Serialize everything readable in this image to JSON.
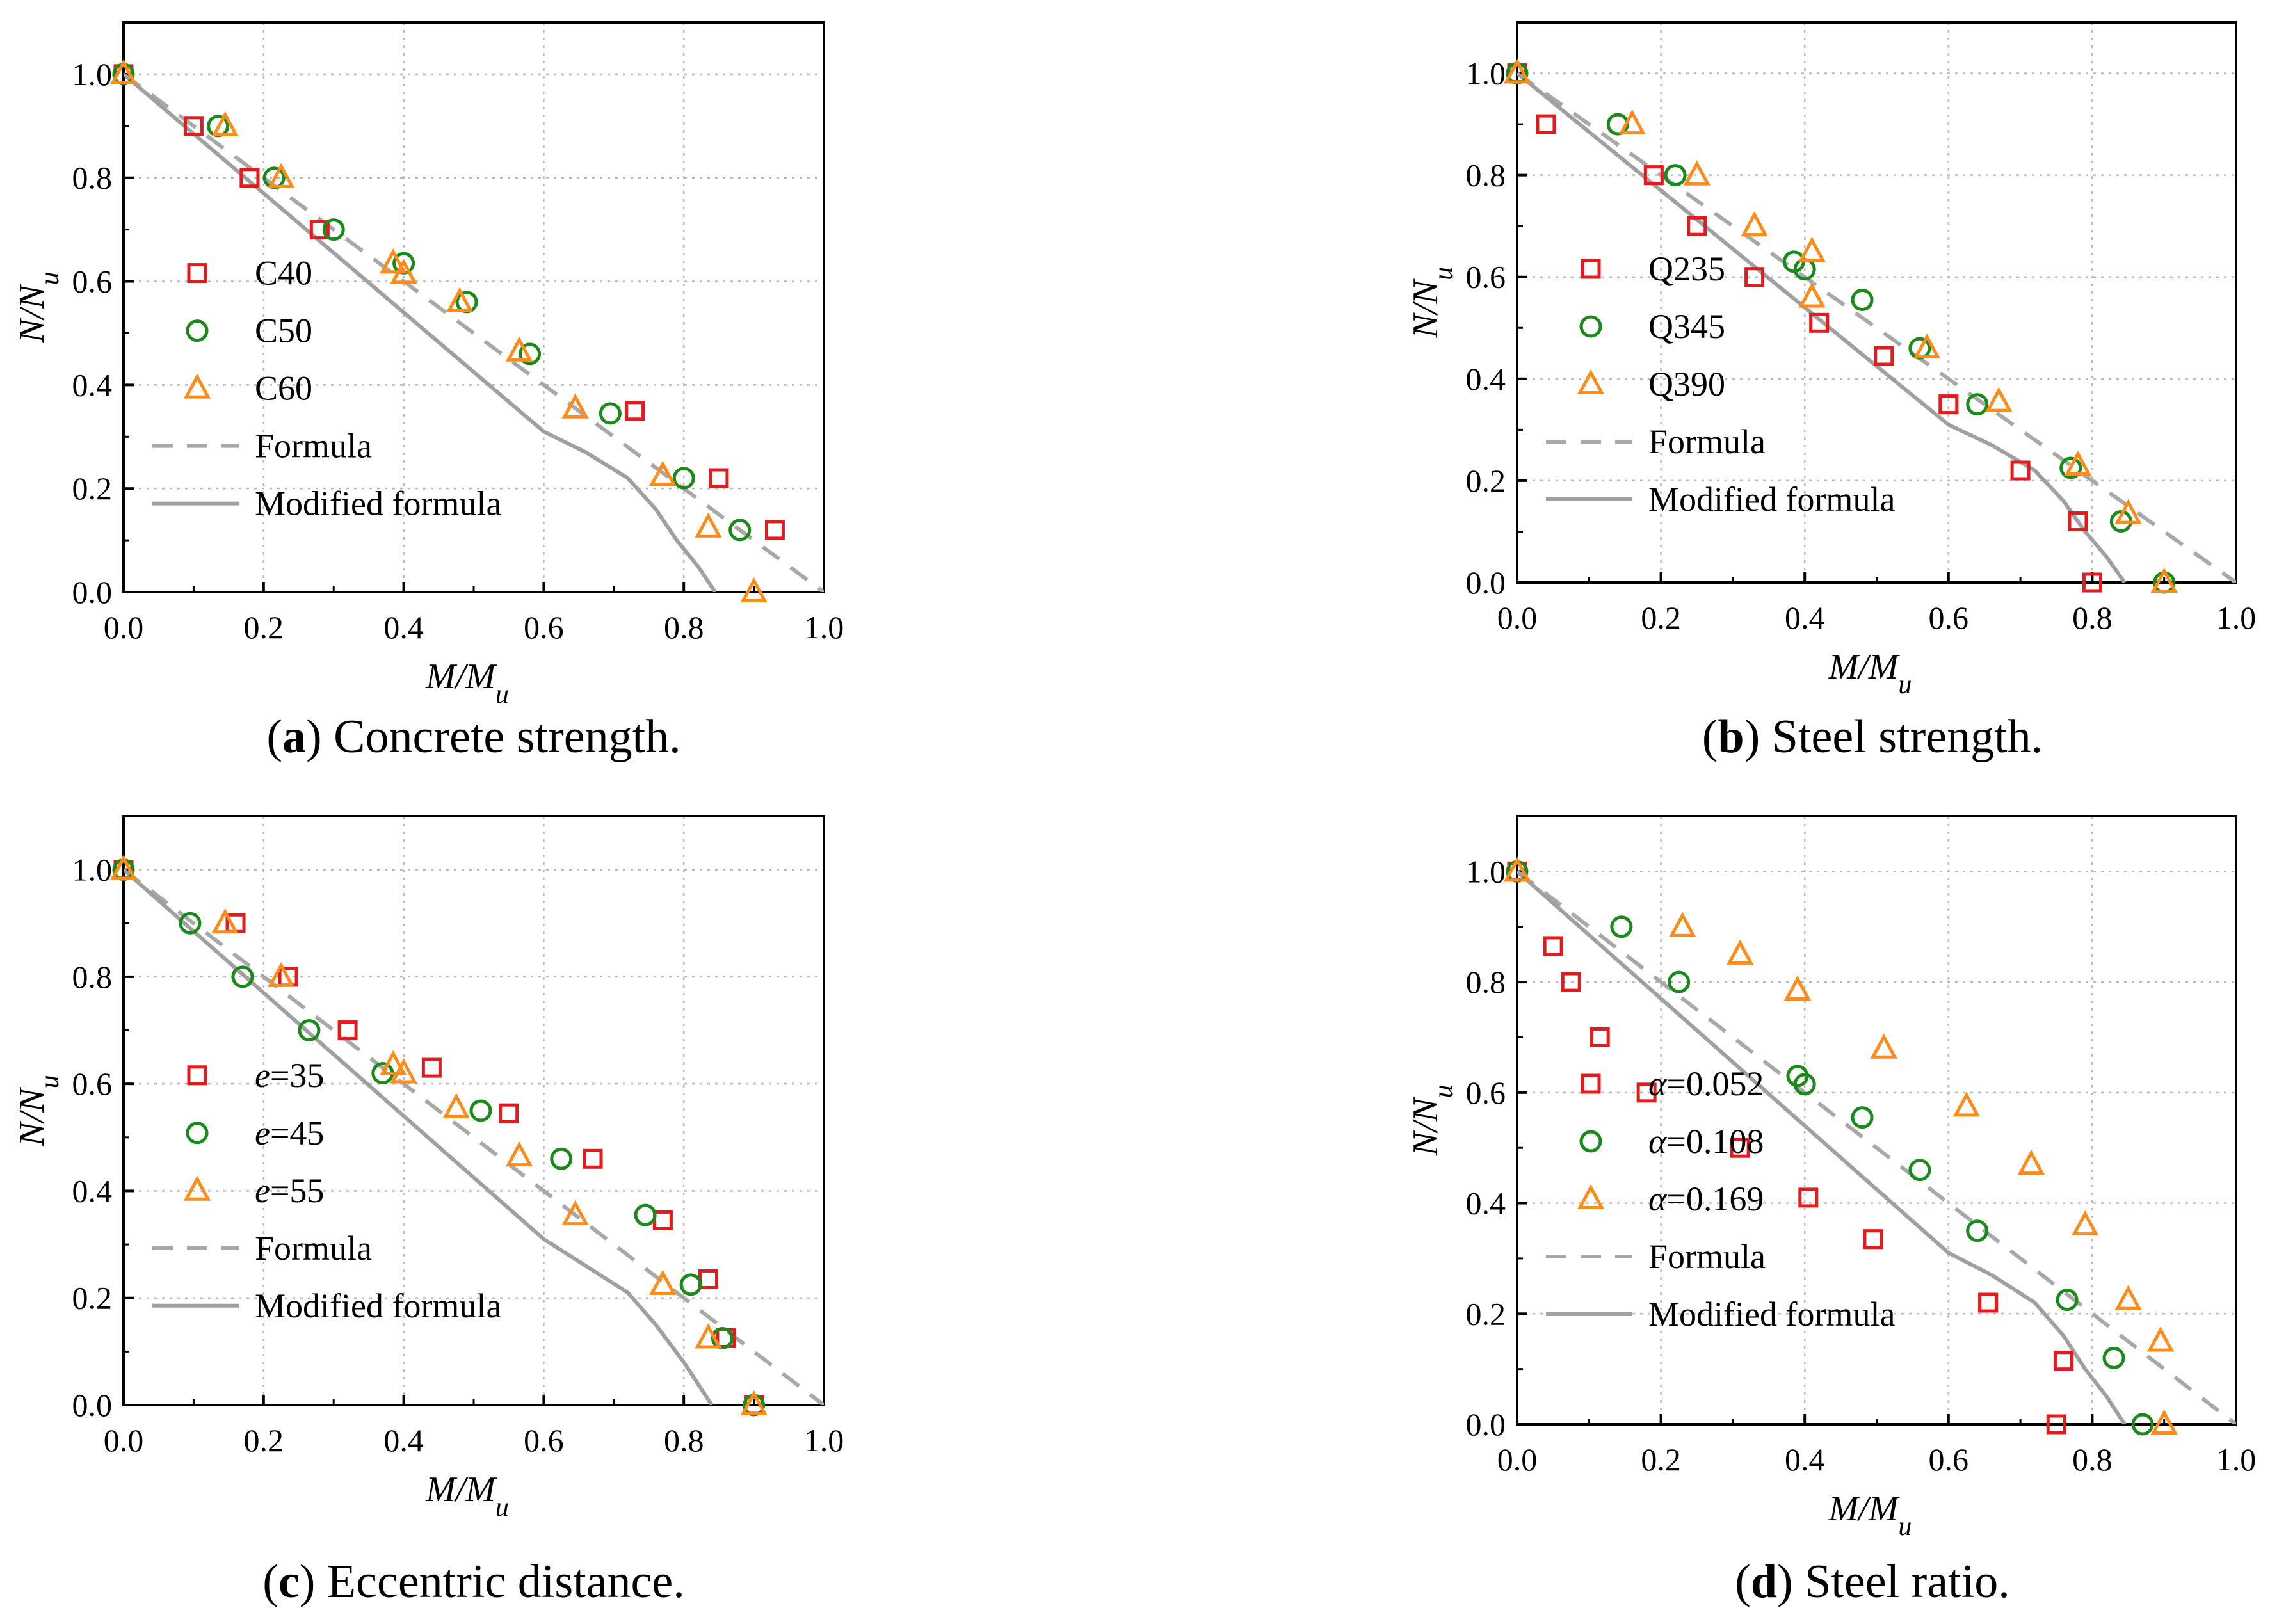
{
  "figure": {
    "panels_order": [
      "a",
      "b",
      "c",
      "d"
    ]
  },
  "axis": {
    "xlabel_main": "M/M",
    "xlabel_sub": "u",
    "ylabel_main": "N/N",
    "ylabel_sub": "u",
    "xticks": [
      "0.0",
      "0.2",
      "0.4",
      "0.6",
      "0.8",
      "1.0"
    ],
    "yticks": [
      "0.0",
      "0.2",
      "0.4",
      "0.6",
      "0.8",
      "1.0"
    ]
  },
  "colors": {
    "series1": "#e41a1c",
    "series2": "#1a8a1a",
    "series3": "#ff8c1a",
    "formula": "#a8a8a8",
    "modified": "#a0a0a0",
    "grid": "#b8b8b8"
  },
  "chart_data": [
    {
      "id": "a",
      "type": "scatter",
      "caption_letter": "a",
      "caption_text": "Concrete strength.",
      "xlim": [
        0,
        1
      ],
      "ylim": [
        0,
        1.1
      ],
      "grid": true,
      "legend_position": "middle-left",
      "series": [
        {
          "name": "C40",
          "marker": "square",
          "points": [
            [
              0,
              1.0
            ],
            [
              0.1,
              0.9
            ],
            [
              0.18,
              0.8
            ],
            [
              0.28,
              0.7
            ],
            [
              0.73,
              0.35
            ],
            [
              0.85,
              0.22
            ],
            [
              0.93,
              0.12
            ]
          ]
        },
        {
          "name": "C50",
          "marker": "circle",
          "points": [
            [
              0,
              1.0
            ],
            [
              0.135,
              0.9
            ],
            [
              0.215,
              0.8
            ],
            [
              0.3,
              0.7
            ],
            [
              0.4,
              0.635
            ],
            [
              0.49,
              0.56
            ],
            [
              0.58,
              0.46
            ],
            [
              0.695,
              0.345
            ],
            [
              0.8,
              0.22
            ],
            [
              0.88,
              0.12
            ]
          ]
        },
        {
          "name": "C60",
          "marker": "triangle",
          "points": [
            [
              0,
              1.0
            ],
            [
              0.145,
              0.9
            ],
            [
              0.225,
              0.8
            ],
            [
              0.385,
              0.635
            ],
            [
              0.4,
              0.615
            ],
            [
              0.48,
              0.56
            ],
            [
              0.565,
              0.465
            ],
            [
              0.645,
              0.355
            ],
            [
              0.77,
              0.225
            ],
            [
              0.835,
              0.125
            ],
            [
              0.9,
              0.0
            ]
          ]
        }
      ],
      "lines": [
        {
          "name": "Formula",
          "style": "dashed",
          "points": [
            [
              0,
              1.0
            ],
            [
              1.0,
              0.0
            ]
          ]
        },
        {
          "name": "Modified formula",
          "style": "solid",
          "points": [
            [
              0,
              1.0
            ],
            [
              0.6,
              0.31
            ],
            [
              0.66,
              0.27
            ],
            [
              0.72,
              0.22
            ],
            [
              0.76,
              0.16
            ],
            [
              0.79,
              0.1
            ],
            [
              0.82,
              0.05
            ],
            [
              0.845,
              0.0
            ]
          ]
        }
      ]
    },
    {
      "id": "b",
      "type": "scatter",
      "caption_letter": "b",
      "caption_text": "Steel strength.",
      "xlim": [
        0,
        1
      ],
      "ylim": [
        0,
        1.1
      ],
      "grid": true,
      "legend_position": "middle-left",
      "series": [
        {
          "name": "Q235",
          "marker": "square",
          "points": [
            [
              0,
              1.0
            ],
            [
              0.04,
              0.9
            ],
            [
              0.19,
              0.8
            ],
            [
              0.25,
              0.7
            ],
            [
              0.33,
              0.6
            ],
            [
              0.42,
              0.51
            ],
            [
              0.51,
              0.445
            ],
            [
              0.6,
              0.35
            ],
            [
              0.7,
              0.22
            ],
            [
              0.78,
              0.12
            ],
            [
              0.8,
              0.0
            ]
          ]
        },
        {
          "name": "Q345",
          "marker": "circle",
          "points": [
            [
              0,
              1.0
            ],
            [
              0.14,
              0.9
            ],
            [
              0.22,
              0.8
            ],
            [
              0.385,
              0.63
            ],
            [
              0.4,
              0.615
            ],
            [
              0.48,
              0.555
            ],
            [
              0.56,
              0.46
            ],
            [
              0.64,
              0.35
            ],
            [
              0.77,
              0.225
            ],
            [
              0.84,
              0.12
            ],
            [
              0.9,
              0.0
            ]
          ]
        },
        {
          "name": "Q390",
          "marker": "triangle",
          "points": [
            [
              0,
              1.0
            ],
            [
              0.16,
              0.9
            ],
            [
              0.25,
              0.8
            ],
            [
              0.33,
              0.7
            ],
            [
              0.41,
              0.65
            ],
            [
              0.41,
              0.56
            ],
            [
              0.57,
              0.46
            ],
            [
              0.67,
              0.355
            ],
            [
              0.78,
              0.23
            ],
            [
              0.85,
              0.135
            ],
            [
              0.9,
              0.0
            ]
          ]
        }
      ],
      "lines": [
        {
          "name": "Formula",
          "style": "dashed",
          "points": [
            [
              0,
              1.0
            ],
            [
              1.0,
              0.0
            ]
          ]
        },
        {
          "name": "Modified formula",
          "style": "solid",
          "points": [
            [
              0,
              1.0
            ],
            [
              0.6,
              0.31
            ],
            [
              0.66,
              0.27
            ],
            [
              0.72,
              0.22
            ],
            [
              0.76,
              0.16
            ],
            [
              0.79,
              0.1
            ],
            [
              0.82,
              0.05
            ],
            [
              0.845,
              0.0
            ]
          ]
        }
      ]
    },
    {
      "id": "c",
      "type": "scatter",
      "caption_letter": "c",
      "caption_text": "Eccentric distance.",
      "xlim": [
        0,
        1
      ],
      "ylim": [
        0,
        1.1
      ],
      "grid": true,
      "legend_position": "middle-left",
      "series": [
        {
          "name": "=35",
          "name_prefix": "e",
          "marker": "square",
          "points": [
            [
              0,
              1.0
            ],
            [
              0.16,
              0.9
            ],
            [
              0.235,
              0.8
            ],
            [
              0.32,
              0.7
            ],
            [
              0.44,
              0.63
            ],
            [
              0.55,
              0.545
            ],
            [
              0.67,
              0.46
            ],
            [
              0.77,
              0.345
            ],
            [
              0.835,
              0.235
            ],
            [
              0.86,
              0.125
            ],
            [
              0.9,
              0.0
            ]
          ]
        },
        {
          "name": "=45",
          "name_prefix": "e",
          "marker": "circle",
          "points": [
            [
              0,
              1.0
            ],
            [
              0.095,
              0.9
            ],
            [
              0.17,
              0.8
            ],
            [
              0.265,
              0.7
            ],
            [
              0.37,
              0.62
            ],
            [
              0.51,
              0.55
            ],
            [
              0.625,
              0.46
            ],
            [
              0.745,
              0.355
            ],
            [
              0.81,
              0.225
            ],
            [
              0.855,
              0.125
            ],
            [
              0.9,
              0.0
            ]
          ]
        },
        {
          "name": "=55",
          "name_prefix": "e",
          "marker": "triangle",
          "points": [
            [
              0,
              1.0
            ],
            [
              0.145,
              0.9
            ],
            [
              0.225,
              0.8
            ],
            [
              0.385,
              0.635
            ],
            [
              0.4,
              0.62
            ],
            [
              0.475,
              0.555
            ],
            [
              0.565,
              0.465
            ],
            [
              0.645,
              0.355
            ],
            [
              0.77,
              0.225
            ],
            [
              0.835,
              0.125
            ],
            [
              0.9,
              0.0
            ]
          ]
        }
      ],
      "lines": [
        {
          "name": "Formula",
          "style": "dashed",
          "points": [
            [
              0,
              1.0
            ],
            [
              1.0,
              0.0
            ]
          ]
        },
        {
          "name": "Modified formula",
          "style": "solid",
          "points": [
            [
              0,
              1.0
            ],
            [
              0.6,
              0.31
            ],
            [
              0.72,
              0.21
            ],
            [
              0.76,
              0.15
            ],
            [
              0.8,
              0.08
            ],
            [
              0.84,
              0.0
            ]
          ]
        }
      ]
    },
    {
      "id": "d",
      "type": "scatter",
      "caption_letter": "d",
      "caption_text": "Steel ratio.",
      "xlim": [
        0,
        1
      ],
      "ylim": [
        0,
        1.1
      ],
      "grid": true,
      "legend_position": "middle-left",
      "series": [
        {
          "name": "=0.052",
          "name_prefix": "α",
          "marker": "square",
          "points": [
            [
              0,
              1.0
            ],
            [
              0.05,
              0.865
            ],
            [
              0.075,
              0.8
            ],
            [
              0.115,
              0.7
            ],
            [
              0.18,
              0.6
            ],
            [
              0.31,
              0.5
            ],
            [
              0.405,
              0.41
            ],
            [
              0.495,
              0.335
            ],
            [
              0.655,
              0.22
            ],
            [
              0.76,
              0.115
            ],
            [
              0.75,
              0.0
            ]
          ]
        },
        {
          "name": "=0.108",
          "name_prefix": "α",
          "marker": "circle",
          "points": [
            [
              0,
              1.0
            ],
            [
              0.145,
              0.9
            ],
            [
              0.225,
              0.8
            ],
            [
              0.39,
              0.63
            ],
            [
              0.4,
              0.615
            ],
            [
              0.48,
              0.555
            ],
            [
              0.56,
              0.46
            ],
            [
              0.64,
              0.35
            ],
            [
              0.765,
              0.225
            ],
            [
              0.83,
              0.12
            ],
            [
              0.87,
              0.0
            ]
          ]
        },
        {
          "name": "=0.169",
          "name_prefix": "α",
          "marker": "triangle",
          "points": [
            [
              0,
              1.0
            ],
            [
              0.23,
              0.9
            ],
            [
              0.31,
              0.85
            ],
            [
              0.39,
              0.785
            ],
            [
              0.51,
              0.68
            ],
            [
              0.625,
              0.575
            ],
            [
              0.715,
              0.47
            ],
            [
              0.79,
              0.36
            ],
            [
              0.85,
              0.225
            ],
            [
              0.895,
              0.15
            ],
            [
              0.9,
              0.0
            ]
          ]
        }
      ],
      "lines": [
        {
          "name": "Formula",
          "style": "dashed",
          "points": [
            [
              0,
              1.0
            ],
            [
              1.0,
              0.0
            ]
          ]
        },
        {
          "name": "Modified formula",
          "style": "solid",
          "points": [
            [
              0,
              1.0
            ],
            [
              0.6,
              0.31
            ],
            [
              0.66,
              0.27
            ],
            [
              0.72,
              0.22
            ],
            [
              0.76,
              0.16
            ],
            [
              0.79,
              0.1
            ],
            [
              0.82,
              0.05
            ],
            [
              0.845,
              0.0
            ]
          ]
        }
      ]
    }
  ]
}
